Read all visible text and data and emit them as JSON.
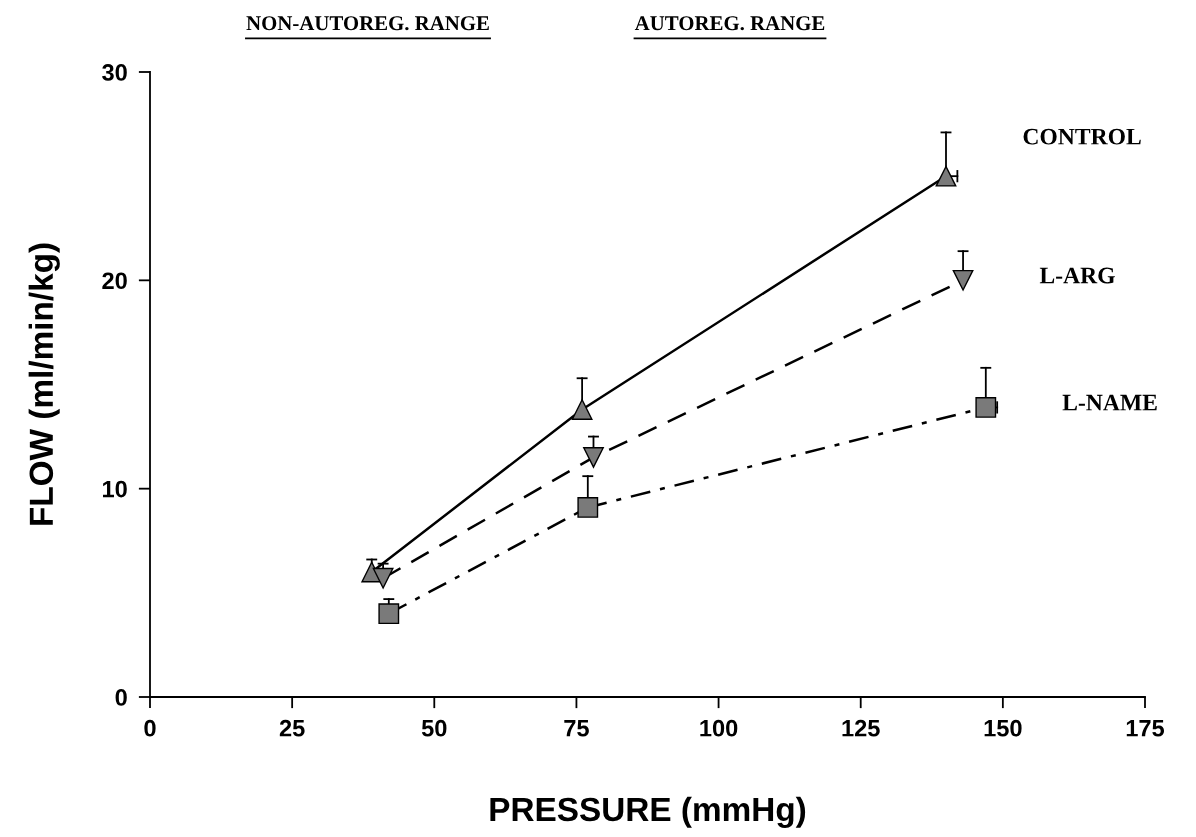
{
  "chart_data": {
    "type": "line",
    "xlabel": "PRESSURE (mmHg)",
    "ylabel": "FLOW (ml/min/kg)",
    "xlim": [
      0,
      175
    ],
    "xticks": [
      0,
      25,
      50,
      75,
      100,
      125,
      150,
      175
    ],
    "ylim": [
      0,
      30
    ],
    "yticks": [
      0,
      10,
      20,
      30
    ],
    "grid": false,
    "legend": false,
    "annotations": [
      "NON-AUTOREG. RANGE",
      "AUTOREG. RANGE"
    ],
    "series": [
      {
        "name": "CONTROL",
        "color": "#000000",
        "marker": "triangle",
        "line_style": "solid",
        "x": [
          39,
          76,
          140
        ],
        "values": [
          6.0,
          13.8,
          25.0
        ],
        "errors": [
          [
            6.0,
            6.6
          ],
          [
            13.8,
            15.3
          ],
          [
            25.0,
            27.1
          ]
        ],
        "xerrors": [
          null,
          null,
          [
            140,
            142
          ]
        ]
      },
      {
        "name": "L-ARG",
        "color": "#000000",
        "marker": "triangle_down",
        "line_style": "dashed",
        "x": [
          41,
          78,
          143
        ],
        "values": [
          5.7,
          11.5,
          20.0
        ],
        "errors": [
          [
            5.7,
            6.4
          ],
          [
            11.5,
            12.5
          ],
          [
            20.0,
            21.4
          ]
        ]
      },
      {
        "name": "L-NAME",
        "color": "#000000",
        "marker": "square",
        "line_style": "dashdot",
        "x": [
          42,
          77,
          147
        ],
        "values": [
          4.0,
          9.1,
          13.9
        ],
        "errors": [
          [
            4.0,
            4.7
          ],
          [
            9.1,
            10.6
          ],
          [
            13.9,
            15.8
          ]
        ],
        "xerrors": [
          null,
          null,
          [
            147,
            149
          ]
        ]
      }
    ]
  }
}
